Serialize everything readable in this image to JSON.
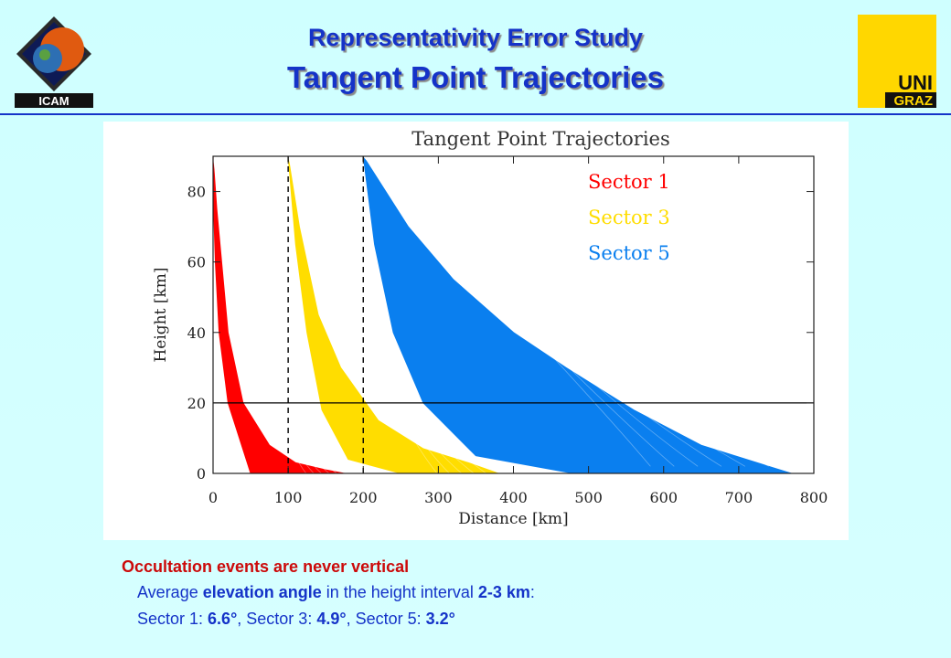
{
  "header": {
    "title": "Representativity Error Study",
    "subtitle": "Tangent Point Trajectories"
  },
  "logos": {
    "left_text": "ICAM",
    "right_text_1": "UNI",
    "right_text_2": "GRAZ"
  },
  "chart_data": {
    "type": "area",
    "title": "Tangent Point Trajectories",
    "xlabel": "Distance [km]",
    "ylabel": "Height [km]",
    "xlim": [
      0,
      800
    ],
    "ylim": [
      0,
      90
    ],
    "xticks": [
      0,
      100,
      200,
      300,
      400,
      500,
      600,
      700,
      800
    ],
    "yticks": [
      0,
      20,
      40,
      60,
      80
    ],
    "reference_lines": {
      "horizontal_y": 20,
      "dashed_vertical_x": [
        100,
        200
      ]
    },
    "legend_position": "top-right",
    "series": [
      {
        "name": "Sector 1",
        "color": "#ff0000",
        "envelope": [
          [
            0,
            90
          ],
          [
            5,
            75
          ],
          [
            20,
            40
          ],
          [
            40,
            20
          ],
          [
            75,
            8
          ],
          [
            110,
            3
          ],
          [
            150,
            1
          ],
          [
            175,
            0
          ],
          [
            130,
            0
          ],
          [
            80,
            0
          ],
          [
            50,
            0
          ],
          [
            20,
            20
          ],
          [
            8,
            40
          ],
          [
            3,
            60
          ],
          [
            0,
            80
          ]
        ]
      },
      {
        "name": "Sector 3",
        "color": "#ffdd00",
        "envelope": [
          [
            100,
            90
          ],
          [
            115,
            70
          ],
          [
            140,
            45
          ],
          [
            170,
            30
          ],
          [
            220,
            15
          ],
          [
            280,
            7
          ],
          [
            340,
            3
          ],
          [
            380,
            0
          ],
          [
            320,
            0
          ],
          [
            250,
            0
          ],
          [
            180,
            4
          ],
          [
            145,
            18
          ],
          [
            125,
            40
          ],
          [
            110,
            65
          ]
        ]
      },
      {
        "name": "Sector 5",
        "color": "#0a7fef",
        "envelope": [
          [
            200,
            90
          ],
          [
            260,
            70
          ],
          [
            320,
            55
          ],
          [
            400,
            40
          ],
          [
            470,
            30
          ],
          [
            560,
            18
          ],
          [
            650,
            8
          ],
          [
            740,
            2
          ],
          [
            770,
            0
          ],
          [
            620,
            0
          ],
          [
            480,
            0
          ],
          [
            350,
            5
          ],
          [
            280,
            20
          ],
          [
            240,
            40
          ],
          [
            215,
            65
          ]
        ]
      }
    ]
  },
  "notes": {
    "line1": "Occultation events are never vertical",
    "line2_prefix": "Average ",
    "line2_bold1": "elevation angle",
    "line2_mid": " in the height interval ",
    "line2_bold2": "2-3 km",
    "line2_suffix": ":",
    "line3_s1_label": "Sector 1:  ",
    "line3_s1_value": "6.6°",
    "line3_s3_label": ", Sector 3: ",
    "line3_s3_value": "4.9°",
    "line3_s5_label": ", Sector 5: ",
    "line3_s5_value": "3.2°"
  }
}
